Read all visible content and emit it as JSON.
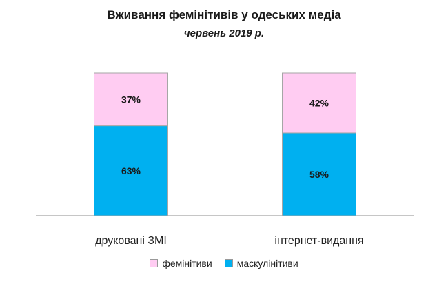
{
  "title": "Вживання фемінітивів у одеських медіа",
  "subtitle": "червень 2019 р.",
  "chart_data": {
    "type": "bar",
    "stacked": true,
    "categories": [
      "друковані ЗМІ",
      "інтернет-видання"
    ],
    "series": [
      {
        "name": "маскулінітиви",
        "values": [
          63,
          58
        ],
        "labels": [
          "63%",
          "58%"
        ],
        "color": "#00B0F0"
      },
      {
        "name": "фемінітиви",
        "values": [
          37,
          42
        ],
        "labels": [
          "37%",
          "42%"
        ],
        "color": "#FFCCF2"
      }
    ],
    "ylim": [
      0,
      100
    ],
    "grid": false,
    "legend_position": "bottom"
  },
  "legend": {
    "items": [
      {
        "label": "фемінітиви",
        "color": "#FFCCF2"
      },
      {
        "label": "маскулінітиви",
        "color": "#00B0F0"
      }
    ]
  }
}
